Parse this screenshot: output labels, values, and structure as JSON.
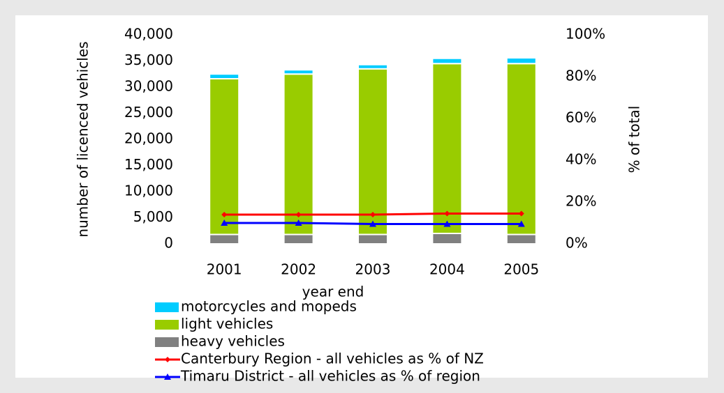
{
  "chart_data": {
    "type": "bar",
    "categories": [
      "2001",
      "2002",
      "2003",
      "2004",
      "2005"
    ],
    "x_label": "year end",
    "y_label": "number of licenced vehicles",
    "y2_label": "% of total",
    "ylim": [
      0,
      40000
    ],
    "yticks": [
      0,
      {
        "value": 5000,
        "label": "5,000"
      },
      {
        "value": 10000,
        "label": "10,000"
      },
      {
        "value": 15000,
        "label": "15,000"
      },
      {
        "value": 20000,
        "label": "20,000"
      },
      {
        "value": 25000,
        "label": "25,000"
      },
      {
        "value": 30000,
        "label": "30,000"
      },
      {
        "value": 35000,
        "label": "35,000"
      },
      {
        "value": 40000,
        "label": "40,000"
      }
    ],
    "y2lim": [
      0,
      100
    ],
    "y2ticks": [
      {
        "value": 0,
        "label": "0%"
      },
      {
        "value": 20,
        "label": "20%"
      },
      {
        "value": 40,
        "label": "40%"
      },
      {
        "value": 60,
        "label": "60%"
      },
      {
        "value": 80,
        "label": "80%"
      },
      {
        "value": 100,
        "label": "100%"
      }
    ],
    "stacked": true,
    "series": [
      {
        "name": "heavy vehicles",
        "type": "bar",
        "color": "#808080",
        "values": [
          1800,
          1800,
          1800,
          2000,
          1800
        ]
      },
      {
        "name": "light vehicles",
        "type": "bar",
        "color": "#99cc00",
        "values": [
          29800,
          30700,
          31700,
          32500,
          32700
        ]
      },
      {
        "name": "motorcycles and mopeds",
        "type": "bar",
        "color": "#00ccff",
        "values": [
          900,
          800,
          800,
          1000,
          1100
        ]
      },
      {
        "name": "Canterbury Region - all vehicles as % of NZ",
        "type": "line",
        "axis": "y2",
        "color": "#ff0000",
        "marker": "diamond",
        "values": [
          14,
          14,
          14,
          14.5,
          14.5
        ]
      },
      {
        "name": "Timaru District - all vehicles as % of region",
        "type": "line",
        "axis": "y2",
        "color": "#0000ff",
        "marker": "triangle",
        "values": [
          10,
          10,
          9.5,
          9.5,
          9.5
        ]
      }
    ],
    "legend_order": [
      2,
      1,
      0,
      3,
      4
    ]
  }
}
